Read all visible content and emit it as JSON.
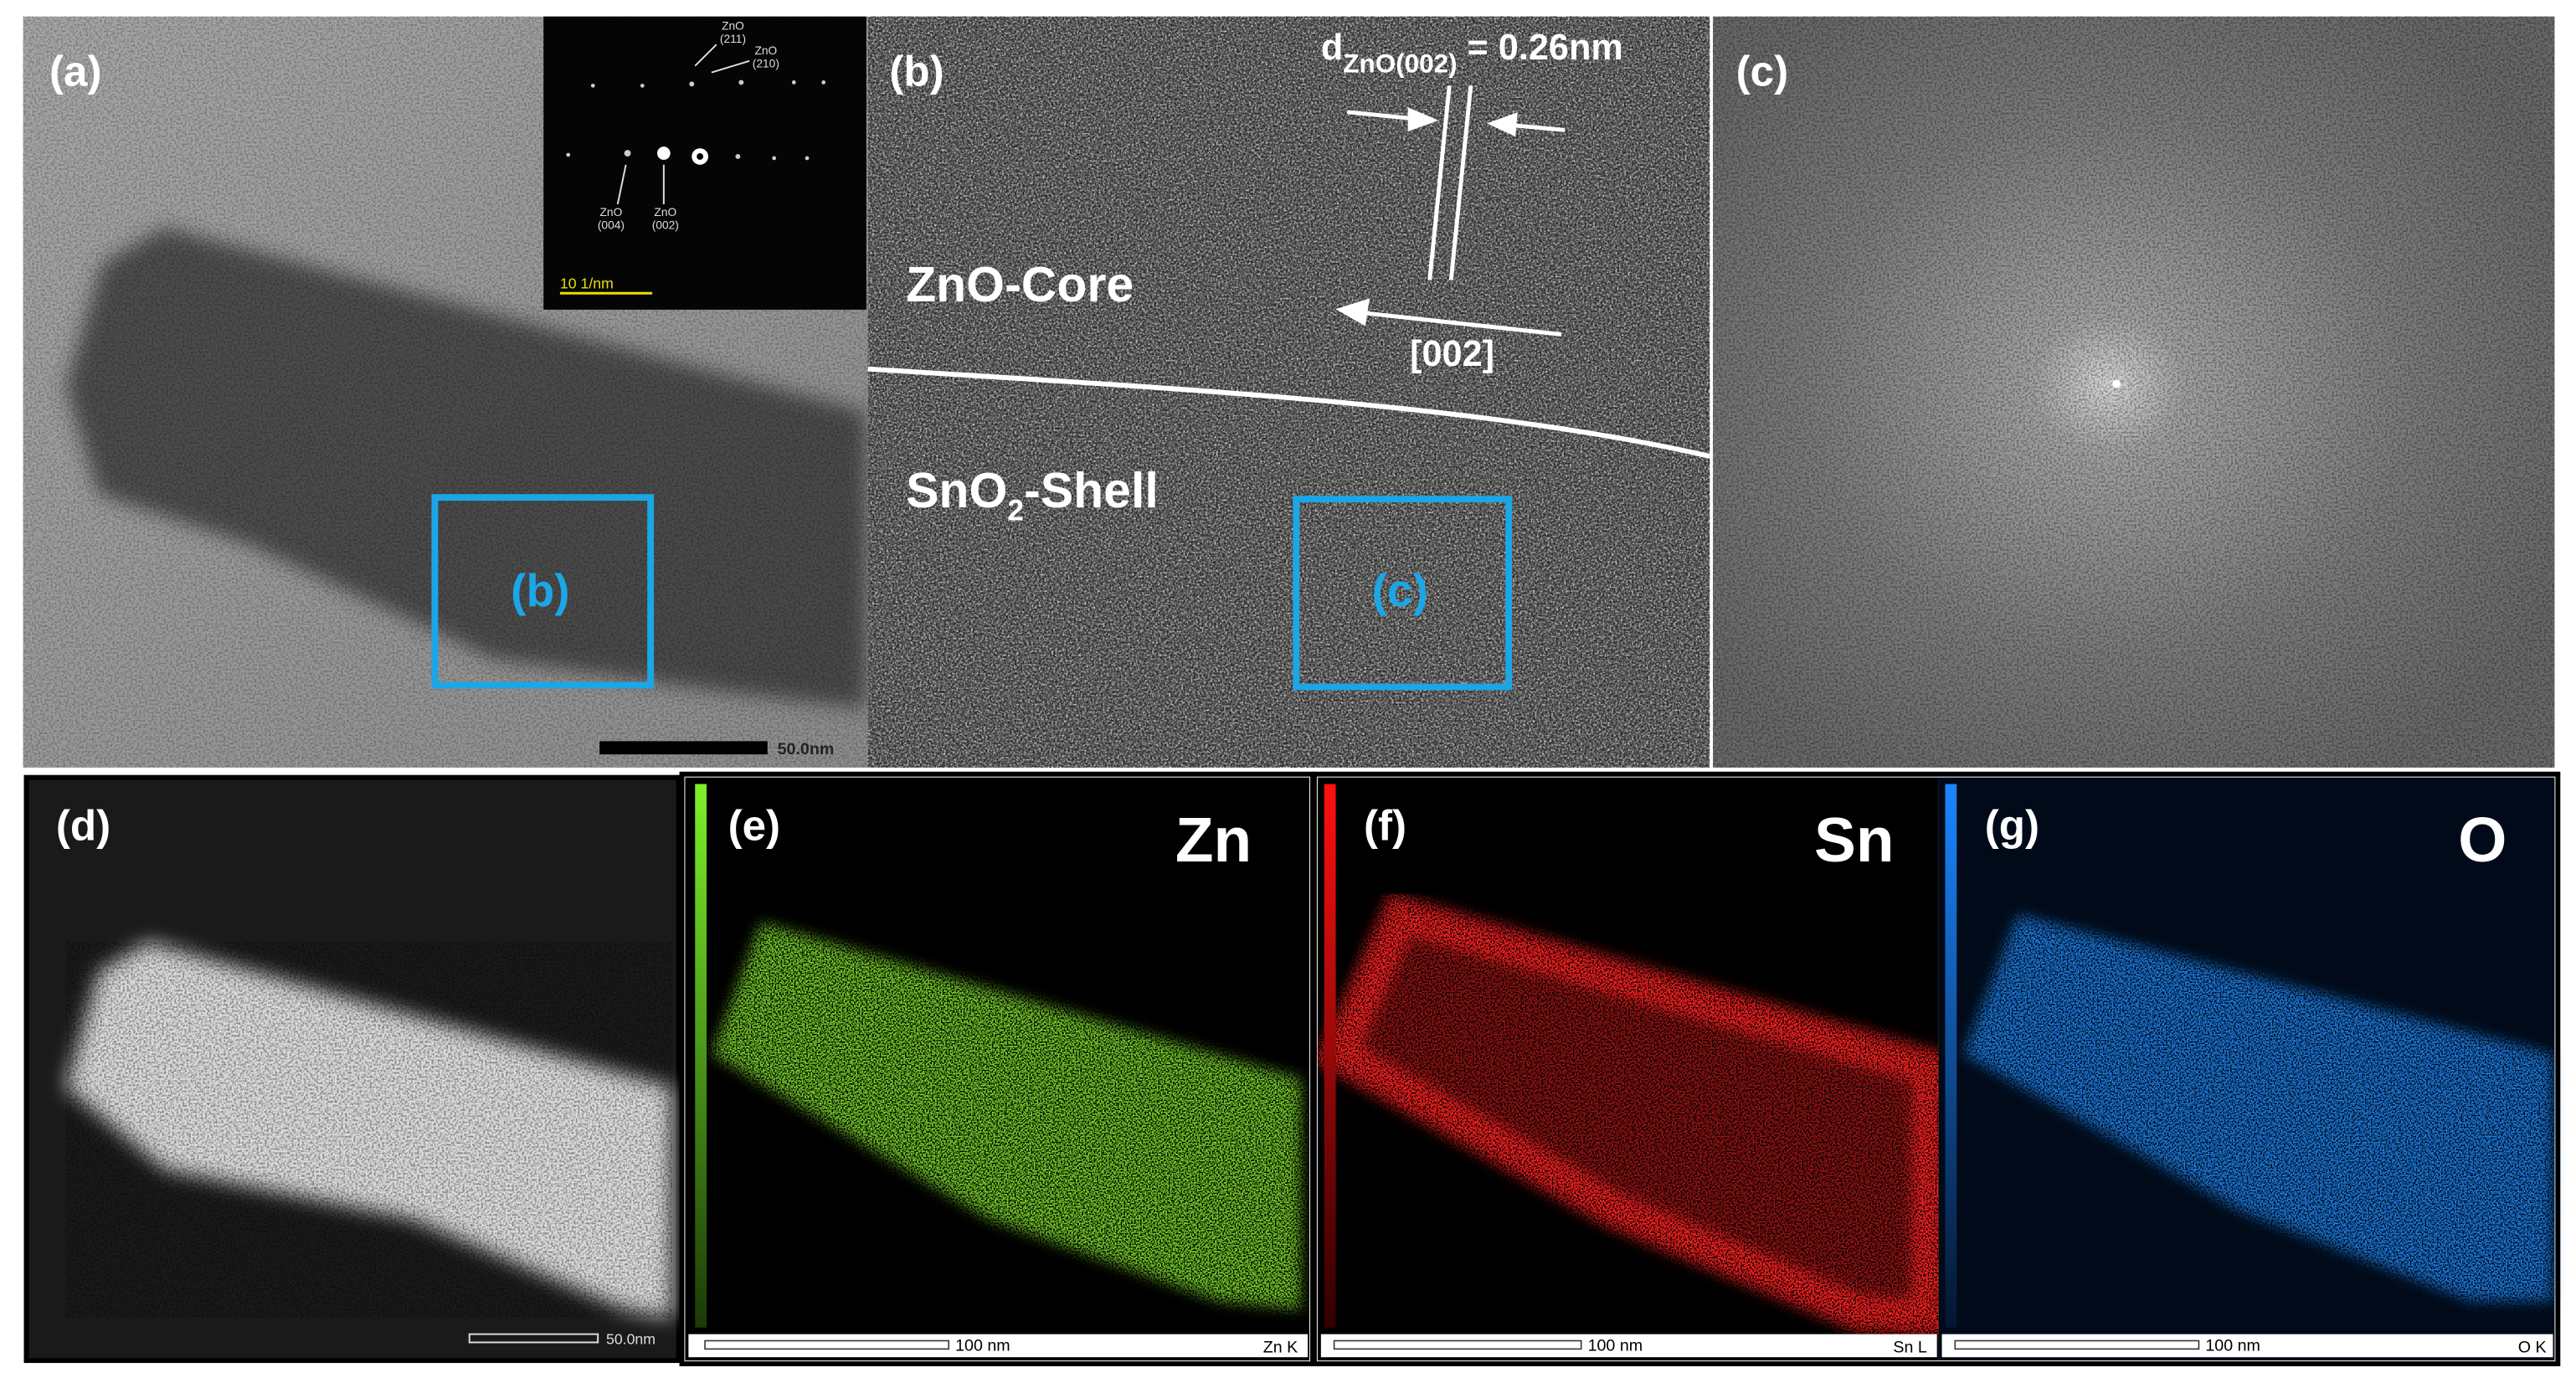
{
  "panel_a": {
    "label": "(a)",
    "inset": {
      "spots": [
        [
          "ZnO",
          "(211)"
        ],
        [
          "ZnO",
          "(210)"
        ],
        [
          "ZnO",
          "(004)"
        ],
        [
          "ZnO",
          "(002)"
        ]
      ],
      "scale_bar": "10 1/nm"
    },
    "region_label": "(b)",
    "scale_bar": "50.0nm"
  },
  "panel_b": {
    "label": "(b)",
    "d_spacing": {
      "symbol": "d",
      "subscript": "ZnO(002)",
      "value": "= 0.26nm"
    },
    "core_label": "ZnO-Core",
    "shell_label": {
      "text": "SnO",
      "subscript": "2",
      "suffix": "-Shell"
    },
    "direction": "[002]",
    "region_label": "(c)"
  },
  "panel_c": {
    "label": "(c)"
  },
  "panel_d": {
    "label": "(d)",
    "scale_bar": "50.0nm"
  },
  "panel_e": {
    "label": "(e)",
    "element": "Zn",
    "scale_bar": "100 nm",
    "line": "Zn K"
  },
  "panel_f": {
    "label": "(f)",
    "element": "Sn",
    "scale_bar": "100 nm",
    "line": "Sn L"
  },
  "panel_g": {
    "label": "(g)",
    "element": "O",
    "scale_bar": "100 nm",
    "line": "O K"
  }
}
